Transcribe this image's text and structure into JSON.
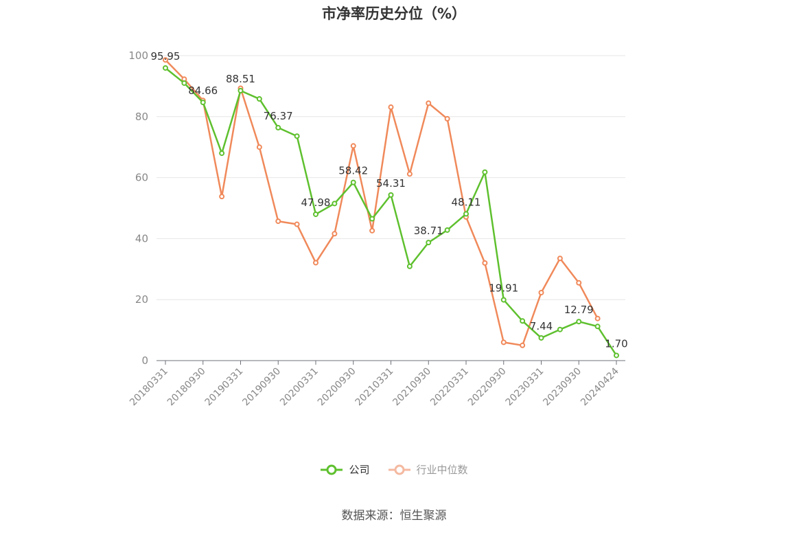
{
  "chart_data": {
    "type": "line",
    "title": "市净率历史分位（%）",
    "xlabel": "",
    "ylabel": "",
    "ylim": [
      0,
      100
    ],
    "yticks": [
      0,
      20,
      40,
      60,
      80,
      100
    ],
    "grid": true,
    "legend_position": "bottom",
    "x": [
      "20180331",
      "20180630",
      "20180930",
      "20181231",
      "20190331",
      "20190630",
      "20190930",
      "20191231",
      "20200331",
      "20200630",
      "20200930",
      "20201231",
      "20210331",
      "20210630",
      "20210930",
      "20211231",
      "20220331",
      "20220630",
      "20220930",
      "20221231",
      "20230331",
      "20230630",
      "20230930",
      "20231231",
      "20240424"
    ],
    "xtick_labels": [
      "20180331",
      "20180930",
      "20190331",
      "20190930",
      "20200331",
      "20200930",
      "20210331",
      "20210930",
      "20220331",
      "20220930",
      "20230331",
      "20230930",
      "20240424"
    ],
    "series": [
      {
        "name": "公司",
        "color": "#5ec02e",
        "values": [
          95.95,
          91.0,
          84.66,
          68.0,
          88.51,
          85.8,
          76.37,
          73.6,
          47.98,
          51.5,
          58.42,
          46.5,
          54.31,
          30.9,
          38.71,
          42.8,
          48.11,
          61.8,
          19.91,
          13.0,
          7.44,
          10.2,
          12.79,
          11.2,
          1.7
        ],
        "labels": {
          "0": "95.95",
          "2": "84.66",
          "4": "88.51",
          "6": "76.37",
          "8": "47.98",
          "10": "58.42",
          "12": "54.31",
          "14": "38.71",
          "16": "48.11",
          "18": "19.91",
          "20": "7.44",
          "22": "12.79",
          "24": "1.70"
        }
      },
      {
        "name": "行业中位数",
        "color": "#f0895a",
        "legend_color": "#f4b9a0",
        "values": [
          98.6,
          92.3,
          85.3,
          53.8,
          89.3,
          70.0,
          45.7,
          44.7,
          32.1,
          41.6,
          70.4,
          42.6,
          83.1,
          61.2,
          84.4,
          79.3,
          47.1,
          32.0,
          6.0,
          5.0,
          22.3,
          33.5,
          25.5,
          13.8,
          null
        ]
      }
    ]
  },
  "source_note": "数据来源：恒生聚源"
}
